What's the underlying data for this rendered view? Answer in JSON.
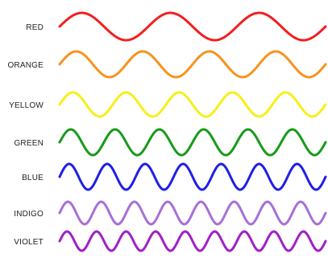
{
  "diagram": {
    "waves": [
      {
        "label": "RED",
        "color": "#f21f1f",
        "cycles": 3
      },
      {
        "label": "ORANGE",
        "color": "#f7931e",
        "cycles": 4
      },
      {
        "label": "YELLOW",
        "color": "#f7ef17",
        "cycles": 5
      },
      {
        "label": "GREEN",
        "color": "#179b1a",
        "cycles": 6
      },
      {
        "label": "BLUE",
        "color": "#1f1fe6",
        "cycles": 7
      },
      {
        "label": "INDIGO",
        "color": "#a86fd6",
        "cycles": 8
      },
      {
        "label": "VIOLET",
        "color": "#a020c8",
        "cycles": 9
      }
    ]
  }
}
